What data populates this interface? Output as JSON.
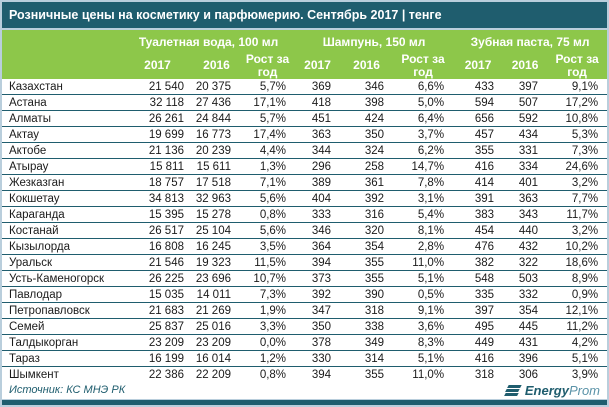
{
  "title": "Розничные цены на косметику и парфюмерию. Сентябрь 2017 | тенге",
  "footer": {
    "source": "Источник: КС МНЭ РК",
    "logo": {
      "bold": "Energy",
      "light": "Prom"
    }
  },
  "colors": {
    "teal": "#1f5d6e",
    "green": "#8dc74a",
    "frame": "#b9cedc",
    "logo_light": "#5b93a8"
  },
  "chart_data": {
    "type": "table",
    "title": "Розничные цены на косметику и парфюмерию. Сентябрь 2017 | тенге",
    "column_groups": [
      "Туалетная вода, 100 мл",
      "Шампунь, 150 мл",
      "Зубная паста, 75 мл"
    ],
    "sub_columns": [
      "2017",
      "2016",
      "Рост за год"
    ],
    "rows": [
      {
        "name": "Казахстан",
        "values": [
          "21 540",
          "20 375",
          "5,7%",
          "369",
          "346",
          "6,6%",
          "433",
          "397",
          "9,1%"
        ]
      },
      {
        "name": "Астана",
        "values": [
          "32 118",
          "27 436",
          "17,1%",
          "418",
          "398",
          "5,0%",
          "594",
          "507",
          "17,2%"
        ]
      },
      {
        "name": "Алматы",
        "values": [
          "26 261",
          "24 844",
          "5,7%",
          "451",
          "424",
          "6,4%",
          "656",
          "592",
          "10,8%"
        ]
      },
      {
        "name": "Актау",
        "values": [
          "19 699",
          "16 773",
          "17,4%",
          "363",
          "350",
          "3,7%",
          "457",
          "434",
          "5,3%"
        ]
      },
      {
        "name": "Актобе",
        "values": [
          "21 136",
          "20 239",
          "4,4%",
          "344",
          "324",
          "6,2%",
          "355",
          "331",
          "7,3%"
        ]
      },
      {
        "name": "Атырау",
        "values": [
          "15 811",
          "15 611",
          "1,3%",
          "296",
          "258",
          "14,7%",
          "416",
          "334",
          "24,6%"
        ]
      },
      {
        "name": "Жезказган",
        "values": [
          "18 757",
          "17 518",
          "7,1%",
          "389",
          "361",
          "7,8%",
          "414",
          "401",
          "3,2%"
        ]
      },
      {
        "name": "Кокшетау",
        "values": [
          "34 813",
          "32 963",
          "5,6%",
          "404",
          "392",
          "3,1%",
          "391",
          "363",
          "7,7%"
        ]
      },
      {
        "name": "Караганда",
        "values": [
          "15 395",
          "15 278",
          "0,8%",
          "333",
          "316",
          "5,4%",
          "383",
          "343",
          "11,7%"
        ]
      },
      {
        "name": "Костанай",
        "values": [
          "26 517",
          "25 104",
          "5,6%",
          "346",
          "320",
          "8,1%",
          "454",
          "440",
          "3,2%"
        ]
      },
      {
        "name": "Кызылорда",
        "values": [
          "16 808",
          "16 245",
          "3,5%",
          "364",
          "354",
          "2,8%",
          "476",
          "432",
          "10,2%"
        ]
      },
      {
        "name": "Уральск",
        "values": [
          "21 546",
          "19 323",
          "11,5%",
          "394",
          "355",
          "11,0%",
          "382",
          "322",
          "18,6%"
        ]
      },
      {
        "name": "Усть-Каменогорск",
        "values": [
          "26 225",
          "23 696",
          "10,7%",
          "373",
          "355",
          "5,1%",
          "548",
          "503",
          "8,9%"
        ]
      },
      {
        "name": "Павлодар",
        "values": [
          "15 035",
          "14 011",
          "7,3%",
          "392",
          "390",
          "0,5%",
          "335",
          "332",
          "0,9%"
        ]
      },
      {
        "name": "Петропавловск",
        "values": [
          "21 683",
          "21 269",
          "1,9%",
          "347",
          "318",
          "9,1%",
          "397",
          "354",
          "12,1%"
        ]
      },
      {
        "name": "Семей",
        "values": [
          "25 837",
          "25 016",
          "3,3%",
          "350",
          "338",
          "3,6%",
          "495",
          "445",
          "11,2%"
        ]
      },
      {
        "name": "Талдыкорган",
        "values": [
          "23 209",
          "23 209",
          "0,0%",
          "378",
          "349",
          "8,3%",
          "449",
          "431",
          "4,2%"
        ]
      },
      {
        "name": "Тараз",
        "values": [
          "16 199",
          "16 014",
          "1,2%",
          "330",
          "314",
          "5,1%",
          "416",
          "396",
          "5,1%"
        ]
      },
      {
        "name": "Шымкент",
        "values": [
          "22 386",
          "22 209",
          "0,8%",
          "394",
          "355",
          "11,0%",
          "318",
          "306",
          "3,9%"
        ]
      }
    ]
  }
}
